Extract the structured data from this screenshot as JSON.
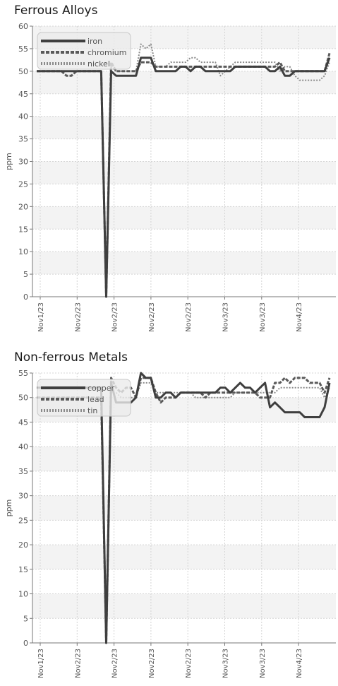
{
  "x_labels": [
    "Nov1/23",
    "Nov2/23",
    "Nov2/23",
    "Nov2/23",
    "Nov2/23",
    "Nov3/23",
    "Nov3/23",
    "Nov4/23"
  ],
  "chart_data": [
    {
      "type": "line",
      "title": "Ferrous Alloys",
      "ylabel": "ppm",
      "xlabel": "",
      "ylim": [
        0,
        60
      ],
      "yticks": [
        0,
        5,
        10,
        15,
        20,
        25,
        30,
        35,
        40,
        45,
        50,
        55,
        60
      ],
      "grid": true,
      "legend_position": "top-left",
      "series": [
        {
          "name": "iron",
          "color": "#3f3f3f",
          "style": "solid",
          "values": [
            50,
            50,
            50,
            50,
            50,
            50,
            50,
            50,
            50,
            50,
            50,
            50,
            50,
            50,
            0,
            50,
            49,
            49,
            49,
            49,
            49,
            53,
            53,
            53,
            50,
            50,
            50,
            50,
            50,
            51,
            51,
            50,
            51,
            51,
            50,
            50,
            50,
            50,
            50,
            50,
            51,
            51,
            51,
            51,
            51,
            51,
            51,
            50,
            50,
            51,
            49,
            49,
            50,
            50,
            50,
            50,
            50,
            50,
            50,
            53
          ]
        },
        {
          "name": "chromium",
          "color": "#5a5a5a",
          "style": "dashed",
          "values": [
            50,
            50,
            50,
            50,
            50,
            50,
            49,
            49,
            50,
            50,
            50,
            50,
            50,
            50,
            0,
            52,
            50,
            50,
            50,
            50,
            50,
            52,
            52,
            52,
            51,
            51,
            51,
            51,
            51,
            51,
            51,
            51,
            51,
            51,
            51,
            51,
            51,
            51,
            51,
            51,
            51,
            51,
            51,
            51,
            51,
            51,
            51,
            51,
            51,
            52,
            50,
            50,
            50,
            50,
            50,
            50,
            50,
            50,
            50,
            54
          ]
        },
        {
          "name": "nickel",
          "color": "#8a8a8a",
          "style": "dotted",
          "values": [
            50,
            50,
            50,
            50,
            50,
            50,
            50,
            50,
            50,
            50,
            50,
            50,
            50,
            50,
            0,
            51,
            50,
            50,
            50,
            50,
            50,
            56,
            55,
            56,
            51,
            51,
            51,
            52,
            52,
            52,
            52,
            53,
            53,
            52,
            52,
            52,
            52,
            49,
            50,
            51,
            52,
            52,
            52,
            52,
            52,
            52,
            52,
            52,
            52,
            50,
            51,
            51,
            49,
            48,
            48,
            48,
            48,
            48,
            49,
            52
          ]
        }
      ]
    },
    {
      "type": "line",
      "title": "Non-ferrous Metals",
      "ylabel": "ppm",
      "xlabel": "",
      "ylim": [
        0,
        55
      ],
      "yticks": [
        0,
        5,
        10,
        15,
        20,
        25,
        30,
        35,
        40,
        45,
        50,
        55
      ],
      "grid": true,
      "legend_position": "top-left",
      "series": [
        {
          "name": "copper",
          "color": "#3f3f3f",
          "style": "solid",
          "values": [
            52,
            52,
            52,
            52,
            52,
            52,
            52,
            52,
            52,
            52,
            52,
            52,
            52,
            52,
            0,
            53,
            49,
            49,
            49,
            49,
            50,
            55,
            54,
            54,
            50,
            50,
            51,
            51,
            50,
            51,
            51,
            51,
            51,
            51,
            51,
            51,
            51,
            52,
            52,
            51,
            52,
            53,
            52,
            52,
            51,
            52,
            53,
            48,
            49,
            48,
            47,
            47,
            47,
            47,
            46,
            46,
            46,
            46,
            48,
            53
          ]
        },
        {
          "name": "lead",
          "color": "#5a5a5a",
          "style": "dashed",
          "values": [
            50,
            50,
            50,
            50,
            50,
            50,
            50,
            50,
            50,
            50,
            50,
            50,
            50,
            50,
            0,
            54,
            52,
            51,
            52,
            52,
            50,
            54,
            54,
            54,
            51,
            49,
            50,
            50,
            50,
            51,
            51,
            51,
            51,
            51,
            50,
            51,
            51,
            51,
            51,
            51,
            51,
            51,
            51,
            51,
            51,
            50,
            50,
            50,
            53,
            53,
            54,
            53,
            54,
            54,
            54,
            53,
            53,
            53,
            51,
            54
          ]
        },
        {
          "name": "tin",
          "color": "#8a8a8a",
          "style": "dotted",
          "values": [
            50,
            50,
            50,
            50,
            50,
            50,
            50,
            50,
            50,
            50,
            50,
            50,
            50,
            50,
            0,
            51,
            51,
            50,
            50,
            50,
            50,
            53,
            53,
            53,
            51,
            51,
            51,
            51,
            51,
            51,
            51,
            51,
            50,
            50,
            50,
            50,
            50,
            50,
            50,
            50,
            51,
            51,
            51,
            51,
            51,
            51,
            51,
            51,
            51,
            52,
            52,
            52,
            52,
            52,
            52,
            52,
            52,
            52,
            50,
            52
          ]
        }
      ]
    }
  ]
}
